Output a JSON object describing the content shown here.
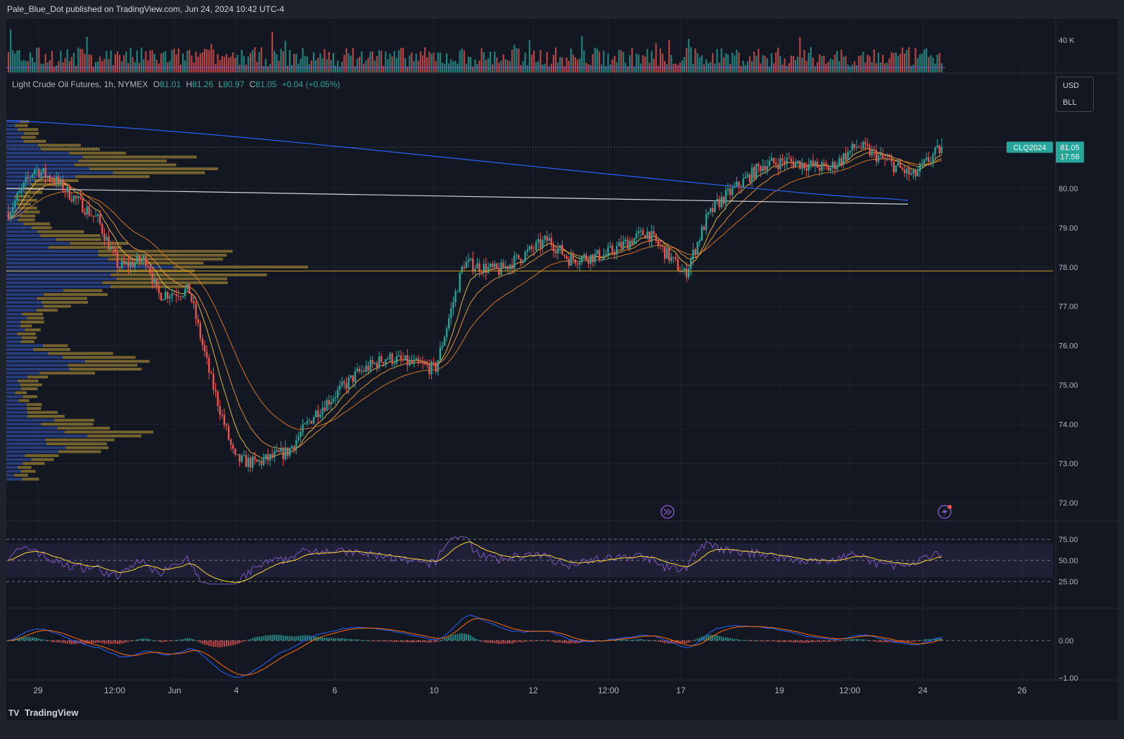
{
  "header": {
    "publisher_line": "Pale_Blue_Dot published on TradingView.com, Jun 24, 2024 10:42 UTC-4"
  },
  "legend": {
    "instrument": "Light Crude Oil Futures, 1h, NYMEX",
    "open_label": "O",
    "open": "81.01",
    "high_label": "H",
    "high": "81.26",
    "low_label": "L",
    "low": "80.97",
    "close_label": "C",
    "close": "81.05",
    "change": "+0.04 (+0.05%)"
  },
  "currency_selector": {
    "currency": "USD",
    "unit": "BLL"
  },
  "price_tag": {
    "symbol": "CLQ2024",
    "price": "81.05",
    "countdown": "17:56"
  },
  "footer": {
    "brand": "TradingView",
    "logo": "tradingview-logo"
  },
  "colors": {
    "up": "#26a69a",
    "down": "#ef5350",
    "background": "#131722",
    "ema_fast": "#f5c542",
    "ema_mid": "#f39c3c",
    "ema_slow": "#e67e22",
    "long_ma": "#2962ff",
    "trendline": "#d1d4dc",
    "poc_line": "#c9a227",
    "volume_profile_up": "#2d4a9a",
    "volume_profile_down": "#a08534",
    "rsi": "#7e57c2",
    "rsi_ma": "#fdd835",
    "macd": "#2962ff",
    "signal": "#ff6d00"
  },
  "icons": [
    "replay-icon",
    "flash-alert-icon"
  ],
  "chart_data": {
    "type": "candlestick",
    "title": "Light Crude Oil Futures, 1h, NYMEX",
    "y_axis": {
      "ticks": [
        "80.00",
        "79.00",
        "78.00",
        "77.00",
        "76.00",
        "75.00",
        "74.00",
        "73.00",
        "72.00"
      ],
      "range": [
        71.75,
        82.0
      ]
    },
    "x_axis": {
      "ticks": [
        "29",
        "12:00",
        "Jun",
        "4",
        "6",
        "10",
        "12",
        "12:00",
        "17",
        "19",
        "12:00",
        "24",
        "26"
      ]
    },
    "price_path": [
      [
        "29",
        79.4
      ],
      [
        "29",
        80.5
      ],
      [
        "29",
        80.2
      ],
      [
        "12:00",
        79.2
      ],
      [
        "12:00",
        78.0
      ],
      [
        "Jun",
        78.2
      ],
      [
        "Jun",
        77.3
      ],
      [
        "Jun",
        77.4
      ],
      [
        "Jun",
        75.2
      ],
      [
        "4",
        73.1
      ],
      [
        "4",
        73.0
      ],
      [
        "4",
        73.3
      ],
      [
        "6",
        74.3
      ],
      [
        "6",
        75.3
      ],
      [
        "6",
        75.7
      ],
      [
        "10",
        75.4
      ],
      [
        "10",
        78.1
      ],
      [
        "10",
        77.9
      ],
      [
        "12",
        78.7
      ],
      [
        "12",
        78.2
      ],
      [
        "12:00",
        78.3
      ],
      [
        "12:00",
        78.9
      ],
      [
        "17",
        77.8
      ],
      [
        "17",
        79.2
      ],
      [
        "17",
        79.6
      ],
      [
        "19",
        80.6
      ],
      [
        "19",
        80.7
      ],
      [
        "12:00",
        80.5
      ],
      [
        "12:00",
        81.1
      ],
      [
        "24",
        80.3
      ],
      [
        "24",
        80.7
      ],
      [
        "24",
        81.05
      ]
    ],
    "last_price": 81.05,
    "horizontal_levels": {
      "poc": 77.9,
      "current": 81.05
    },
    "volume": {
      "axis_tick": "40 K"
    },
    "rsi": {
      "ticks": [
        "75.00",
        "50.00",
        "25.00"
      ],
      "band": [
        30,
        70
      ]
    },
    "macd": {
      "ticks": [
        "0.00",
        "−1.00"
      ]
    }
  }
}
